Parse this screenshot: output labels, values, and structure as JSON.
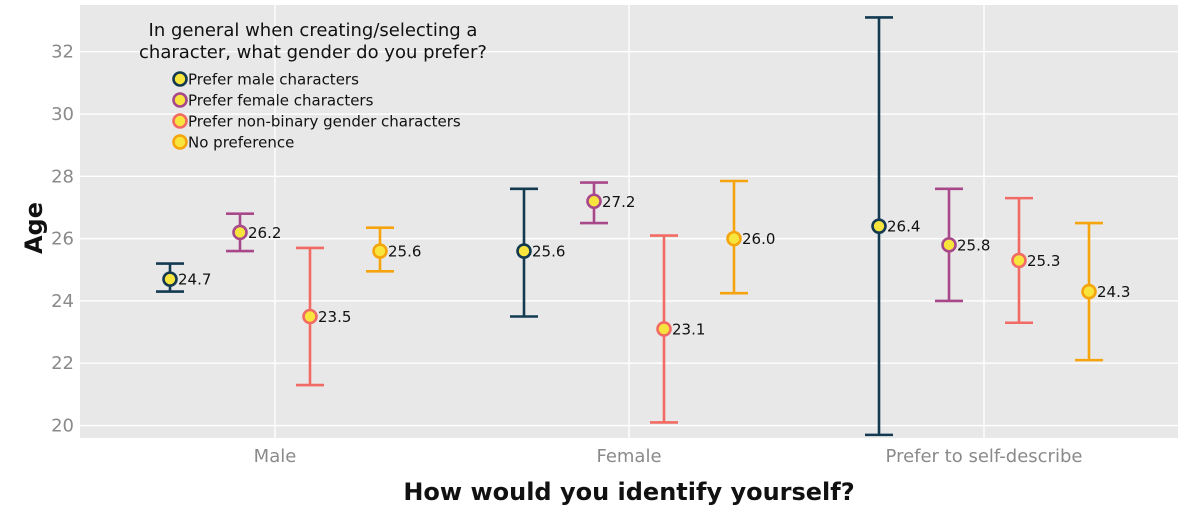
{
  "chart_data": {
    "type": "errorbar",
    "title": "",
    "xlabel": "How would you identify yourself?",
    "ylabel": "Age",
    "ylim": [
      19.6,
      33.5
    ],
    "yticks": [
      20,
      22,
      24,
      26,
      28,
      30,
      32
    ],
    "grid": true,
    "categories": [
      "Male",
      "Female",
      "Prefer to self-describe"
    ],
    "legend": {
      "title_lines": [
        "In general when creating/selecting a",
        "character, what gender do you prefer?"
      ],
      "placement": "top-left"
    },
    "series": [
      {
        "name": "Prefer male characters",
        "color": "#143a52",
        "values": [
          24.7,
          25.6,
          26.4
        ],
        "lower": [
          24.3,
          23.5,
          19.7
        ],
        "upper": [
          25.2,
          27.6,
          33.1
        ],
        "labels": [
          "24.7",
          "25.6",
          "26.4"
        ]
      },
      {
        "name": "Prefer female characters",
        "color": "#a8488a",
        "values": [
          26.2,
          27.2,
          25.8
        ],
        "lower": [
          25.6,
          26.5,
          24.0
        ],
        "upper": [
          26.8,
          27.8,
          27.6
        ],
        "labels": [
          "26.2",
          "27.2",
          "25.8"
        ]
      },
      {
        "name": "Prefer non-binary gender characters",
        "color": "#f16a64",
        "values": [
          23.5,
          23.1,
          25.3
        ],
        "lower": [
          21.3,
          20.1,
          23.3
        ],
        "upper": [
          25.7,
          26.1,
          27.3
        ],
        "labels": [
          "23.5",
          "23.1",
          "25.3"
        ]
      },
      {
        "name": "No preference",
        "color": "#f5a40e",
        "values": [
          25.6,
          26.0,
          24.3
        ],
        "lower": [
          24.95,
          24.25,
          22.1
        ],
        "upper": [
          26.35,
          27.85,
          26.5
        ],
        "labels": [
          "25.6",
          "26.0",
          "24.3"
        ]
      }
    ],
    "point_fill": "#f7e53d"
  }
}
